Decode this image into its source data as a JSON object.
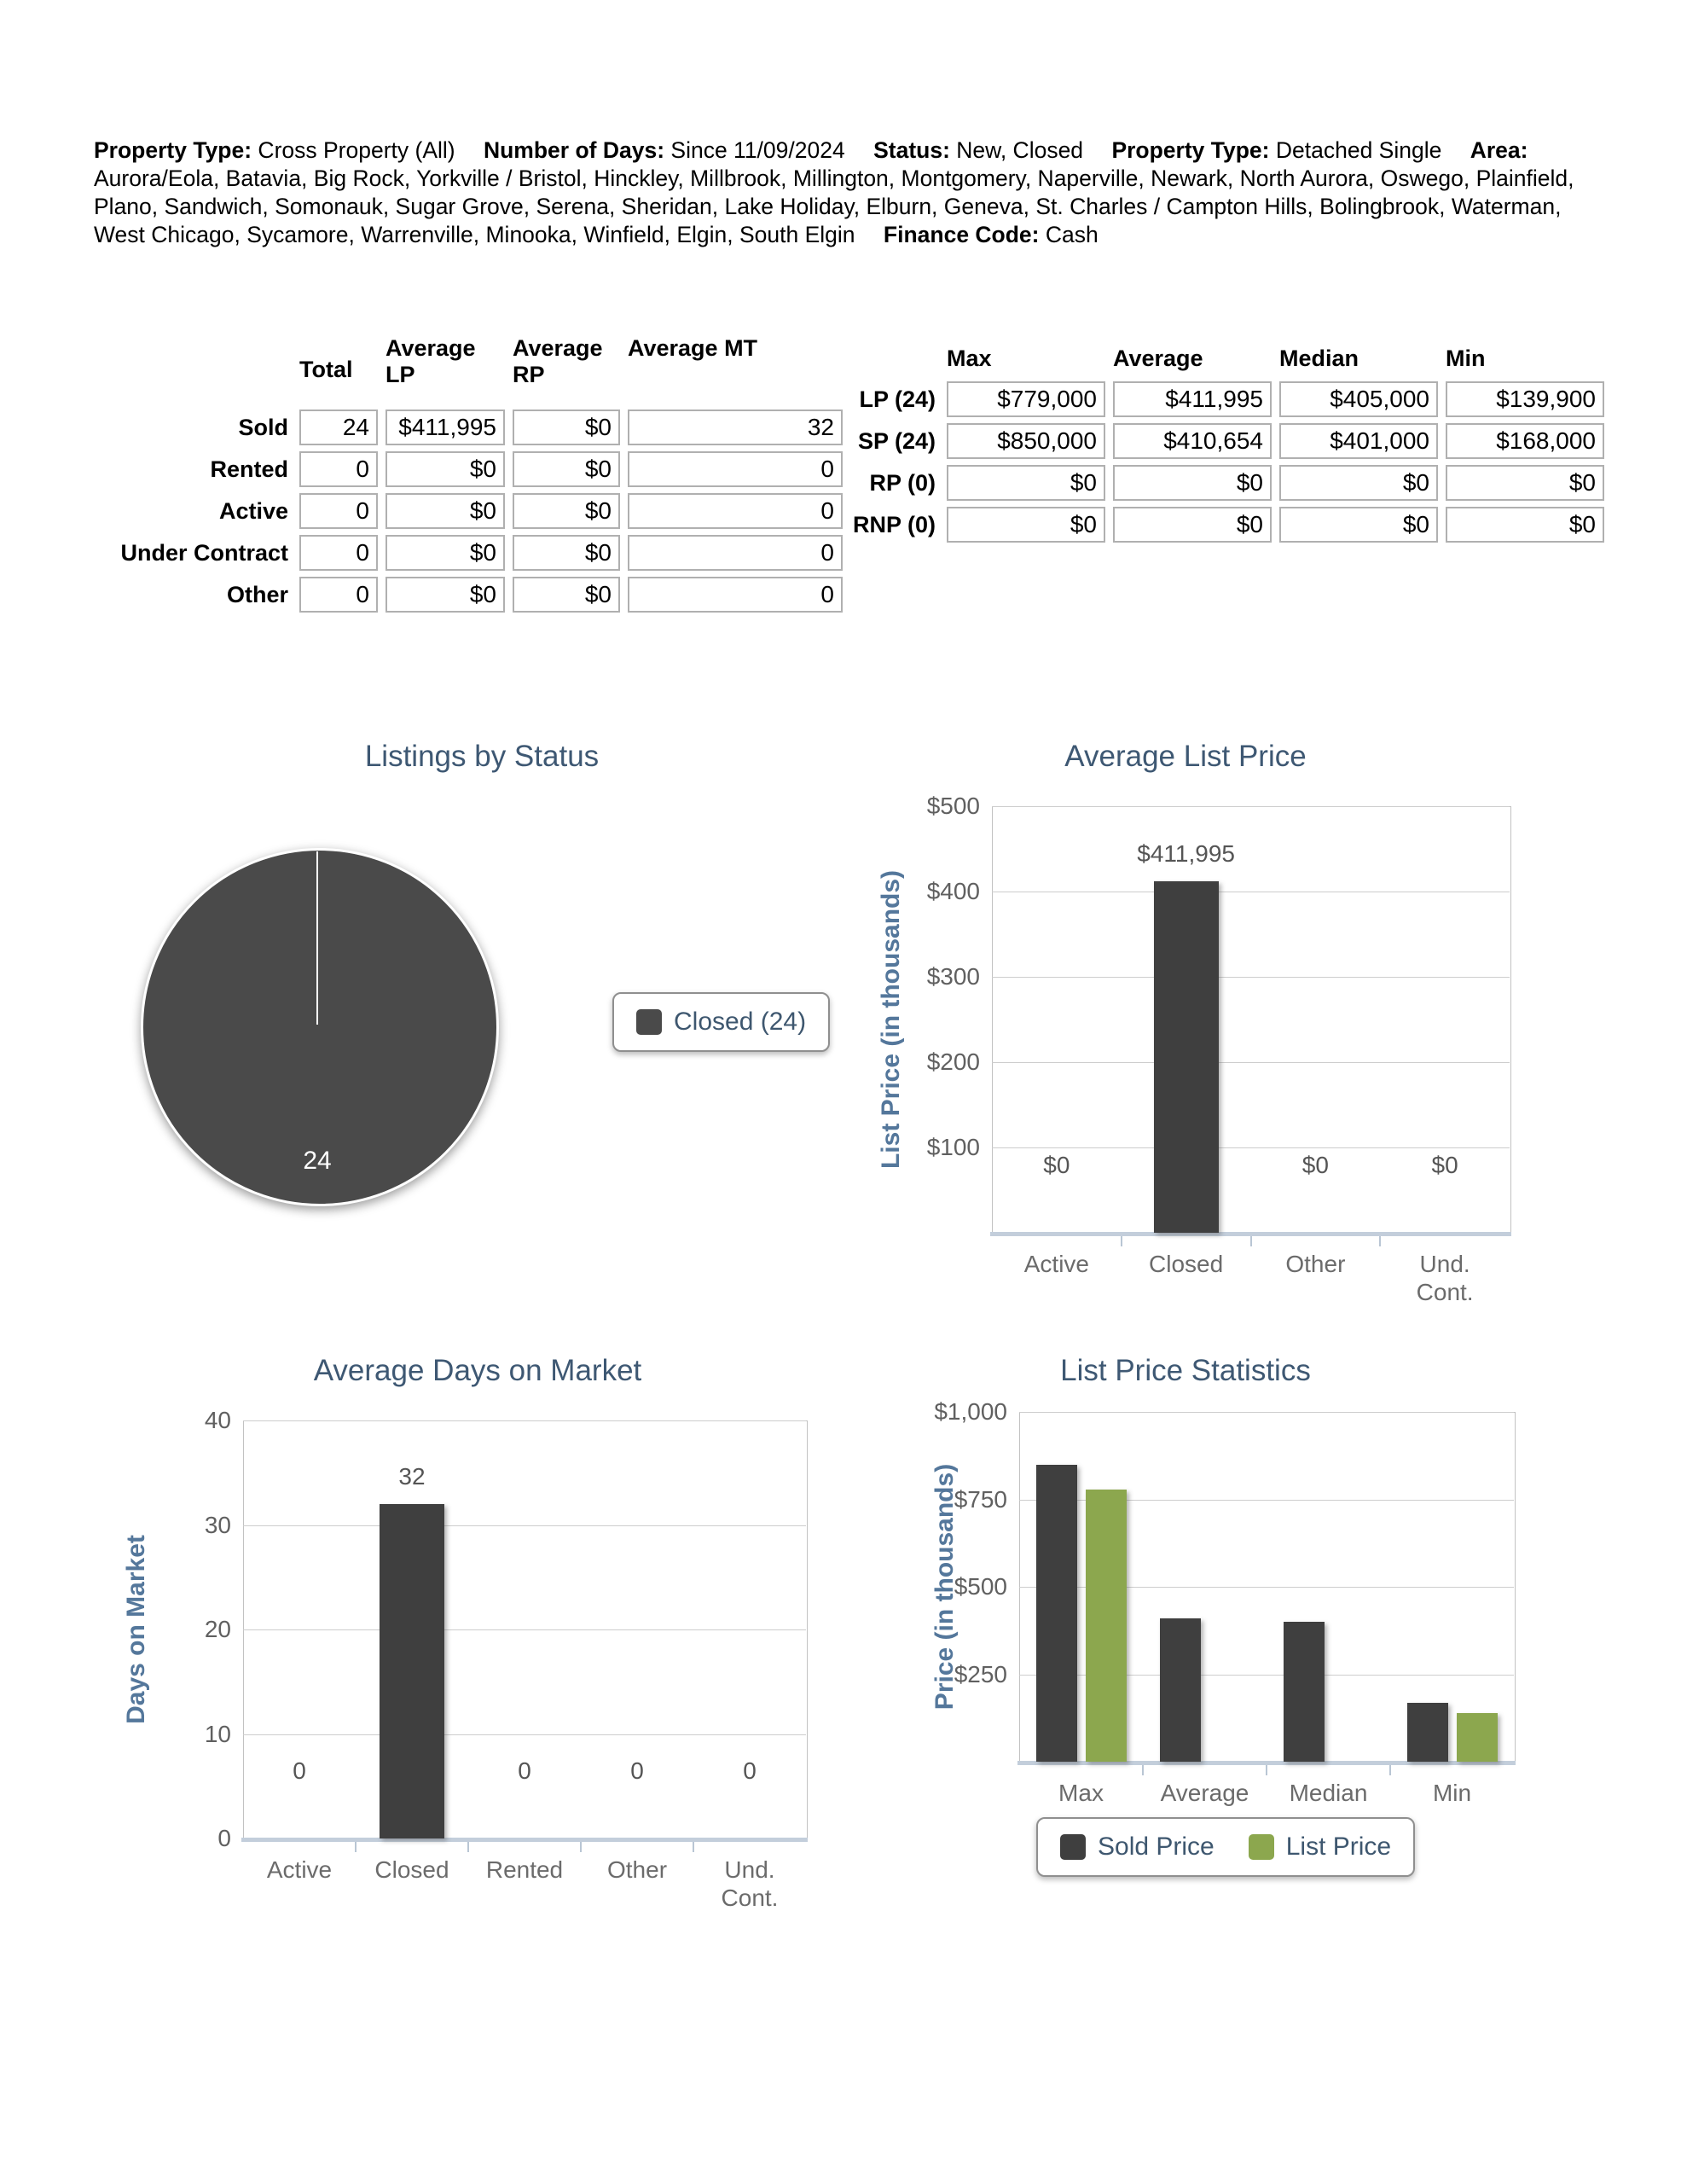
{
  "header": {
    "segments": [
      {
        "label": "Property Type:",
        "value": "Cross Property (All)"
      },
      {
        "label": "Number of Days:",
        "value": "Since 11/09/2024"
      },
      {
        "label": "Status:",
        "value": "New, Closed"
      },
      {
        "label": "Property Type:",
        "value": "Detached Single"
      },
      {
        "label": "Area:",
        "value": "Aurora/Eola, Batavia, Big Rock, Yorkville / Bristol, Hinckley, Millbrook, Millington, Montgomery, Naperville, Newark, North Aurora, Oswego, Plainfield, Plano, Sandwich, Somonauk, Sugar Grove, Serena, Sheridan, Lake Holiday, Elburn, Geneva, St. Charles / Campton Hills, Bolingbrook, Waterman, West Chicago, Sycamore, Warrenville, Minooka, Winfield, Elgin, South Elgin"
      },
      {
        "label": "Finance Code:",
        "value": "Cash"
      }
    ]
  },
  "status_table": {
    "columns": [
      "Total",
      "Average LP",
      "Average RP",
      "Average MT"
    ],
    "rows": [
      {
        "label": "Sold",
        "values": [
          "24",
          "$411,995",
          "$0",
          "32"
        ]
      },
      {
        "label": "Rented",
        "values": [
          "0",
          "$0",
          "$0",
          "0"
        ]
      },
      {
        "label": "Active",
        "values": [
          "0",
          "$0",
          "$0",
          "0"
        ]
      },
      {
        "label": "Under Contract",
        "values": [
          "0",
          "$0",
          "$0",
          "0"
        ]
      },
      {
        "label": "Other",
        "values": [
          "0",
          "$0",
          "$0",
          "0"
        ]
      }
    ]
  },
  "price_table": {
    "columns": [
      "Max",
      "Average",
      "Median",
      "Min"
    ],
    "rows": [
      {
        "label": "LP (24)",
        "values": [
          "$779,000",
          "$411,995",
          "$405,000",
          "$139,900"
        ]
      },
      {
        "label": "SP (24)",
        "values": [
          "$850,000",
          "$410,654",
          "$401,000",
          "$168,000"
        ]
      },
      {
        "label": "RP (0)",
        "values": [
          "$0",
          "$0",
          "$0",
          "$0"
        ]
      },
      {
        "label": "RNP (0)",
        "values": [
          "$0",
          "$0",
          "$0",
          "$0"
        ]
      }
    ]
  },
  "colors": {
    "bar_dark": "#3F3F3F",
    "pie_dark": "#4A4A4A",
    "green": "#8CA74E",
    "title_text": "#3E5873",
    "axis_title": "#54779B",
    "tick_label": "#606060",
    "data_label": "#555555",
    "gridline": "#CDCDCD",
    "axis_line": "#C3CEDB",
    "legend_text": "#3E576F",
    "cell_border": "#B0B0B0"
  },
  "chart_data": [
    {
      "type": "pie",
      "title": "Listings by Status",
      "slices": [
        {
          "label": "Closed",
          "value": 24,
          "color": "#4A4A4A",
          "data_label": "24"
        }
      ],
      "total": 24,
      "legend": [
        {
          "label": "Closed (24)",
          "color": "#4A4A4A"
        }
      ],
      "legend_position": "right-middle"
    },
    {
      "type": "bar",
      "title": "Average List Price",
      "ylabel": "List Price (in thousands)",
      "xlabel": "",
      "categories": [
        "Active",
        "Closed",
        "Other",
        "Und. Cont."
      ],
      "series": [
        {
          "name": "",
          "color": "#3F3F3F",
          "values": [
            0,
            411.995,
            0,
            0
          ]
        }
      ],
      "bar_labels": [
        "$0",
        "$411,995",
        "$0",
        "$0"
      ],
      "ylim": [
        0,
        500
      ],
      "yticks": [
        {
          "value": 100,
          "label": "$100"
        },
        {
          "value": 200,
          "label": "$200"
        },
        {
          "value": 300,
          "label": "$300"
        },
        {
          "value": 400,
          "label": "$400"
        },
        {
          "value": 500,
          "label": "$500"
        }
      ],
      "grid": true,
      "legend": null
    },
    {
      "type": "bar",
      "title": "Average Days on Market",
      "ylabel": "Days on Market",
      "xlabel": "",
      "categories": [
        "Active",
        "Closed",
        "Rented",
        "Other",
        "Und. Cont."
      ],
      "series": [
        {
          "name": "",
          "color": "#3F3F3F",
          "values": [
            0,
            32,
            0,
            0,
            0
          ]
        }
      ],
      "bar_labels": [
        "0",
        "32",
        "0",
        "0",
        "0"
      ],
      "ylim": [
        0,
        40
      ],
      "yticks": [
        {
          "value": 0,
          "label": "0"
        },
        {
          "value": 10,
          "label": "10"
        },
        {
          "value": 20,
          "label": "20"
        },
        {
          "value": 30,
          "label": "30"
        },
        {
          "value": 40,
          "label": "40"
        }
      ],
      "grid": true,
      "legend": null
    },
    {
      "type": "bar",
      "title": "List Price Statistics",
      "ylabel": "Price (in thousands)",
      "xlabel": "",
      "categories": [
        "Max",
        "Average",
        "Median",
        "Min"
      ],
      "series": [
        {
          "name": "Sold Price",
          "color": "#3F3F3F",
          "values": [
            850,
            410.654,
            401,
            168
          ]
        },
        {
          "name": "List Price",
          "color": "#8CA74E",
          "values": [
            779,
            0,
            0,
            139.9
          ]
        }
      ],
      "note": "List Price bars are not drawn at the Average and Median positions in the source image",
      "ylim": [
        0,
        1000
      ],
      "yticks": [
        {
          "value": 250,
          "label": "$250"
        },
        {
          "value": 500,
          "label": "$500"
        },
        {
          "value": 750,
          "label": "$750"
        },
        {
          "value": 1000,
          "label": "$1,000"
        }
      ],
      "grid": true,
      "legend": [
        {
          "label": "Sold Price",
          "color": "#3F3F3F"
        },
        {
          "label": "List Price",
          "color": "#8CA74E"
        }
      ],
      "legend_position": "bottom-center"
    }
  ]
}
